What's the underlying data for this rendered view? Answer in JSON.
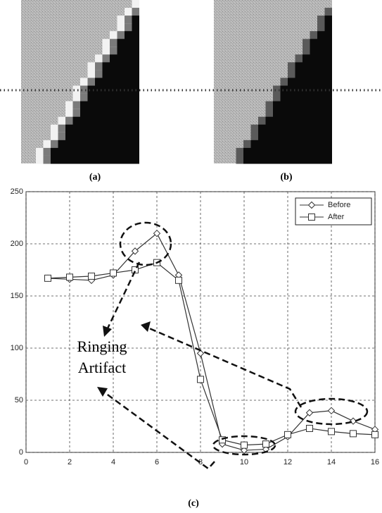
{
  "panels": [
    "(a)",
    "(b)"
  ],
  "caption": "(c)",
  "chart_data": {
    "type": "line",
    "x": [
      1,
      2,
      3,
      4,
      5,
      6,
      7,
      8,
      9,
      10,
      11,
      12,
      13,
      14,
      15,
      16
    ],
    "series": [
      {
        "name": "Before",
        "color": "#333333",
        "marker": "diamond",
        "values": [
          167,
          166,
          165,
          170,
          193,
          210,
          170,
          95,
          8,
          2,
          3,
          15,
          38,
          40,
          30,
          22
        ]
      },
      {
        "name": "After",
        "color": "#333333",
        "marker": "square",
        "values": [
          167,
          168,
          169,
          172,
          175,
          182,
          165,
          70,
          12,
          7,
          8,
          17,
          23,
          20,
          18,
          17
        ]
      }
    ],
    "xlim": [
      0,
      16
    ],
    "xticks": [
      0,
      2,
      4,
      6,
      8,
      10,
      12,
      14,
      16
    ],
    "ylim": [
      0,
      250
    ],
    "yticks": [
      0,
      50,
      100,
      150,
      200,
      250
    ],
    "grid": true,
    "legend": "upper right",
    "annotation": [
      "Ringing",
      "Artifact"
    ]
  }
}
